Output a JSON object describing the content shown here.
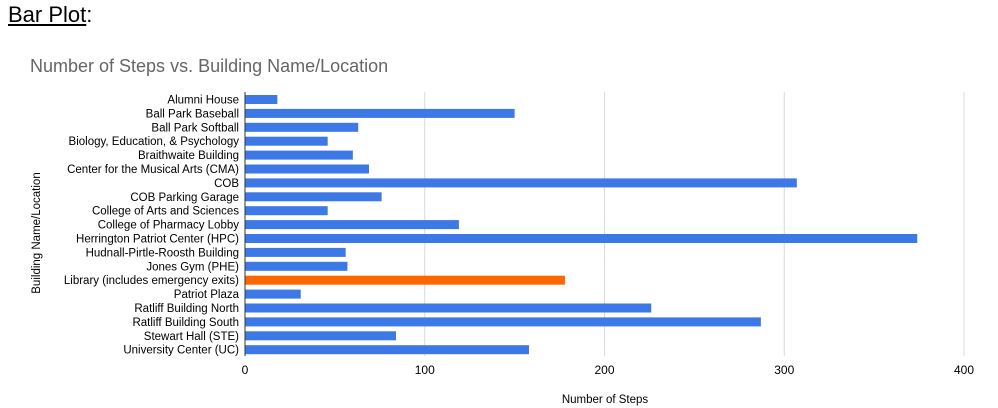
{
  "page": {
    "heading": "Bar Plot",
    "heading_suffix": ":"
  },
  "chart_data": {
    "type": "bar",
    "orientation": "horizontal",
    "title": "Number of Steps vs. Building Name/Location",
    "xlabel": "Number of Steps",
    "ylabel": "Building Name/Location",
    "xlim": [
      0,
      400
    ],
    "xticks": [
      0,
      100,
      200,
      300,
      400
    ],
    "grid": true,
    "legend": "none",
    "categories": [
      "Alumni House",
      "Ball Park Baseball",
      "Ball Park Softball",
      "Biology, Education, & Psychology",
      "Braithwaite Building",
      "Center for the Musical Arts (CMA)",
      "COB",
      "COB Parking Garage",
      "College of Arts and Sciences",
      "College of Pharmacy Lobby",
      "Herrington Patriot Center (HPC)",
      "Hudnall-Pirtle-Roosth Building",
      "Jones Gym (PHE)",
      "Library (includes emergency exits)",
      "Patriot Plaza",
      "Ratliff Building North",
      "Ratliff Building South",
      "Stewart Hall (STE)",
      "University Center (UC)"
    ],
    "values": [
      18,
      150,
      63,
      46,
      60,
      69,
      307,
      76,
      46,
      119,
      374,
      56,
      57,
      178,
      31,
      226,
      287,
      84,
      158
    ],
    "colors": {
      "default": "#3c78e6",
      "highlight": "#ff6600",
      "grid": "#d9d9d9",
      "axis": "#333333",
      "text": "#000000"
    },
    "highlight_index": 13
  }
}
